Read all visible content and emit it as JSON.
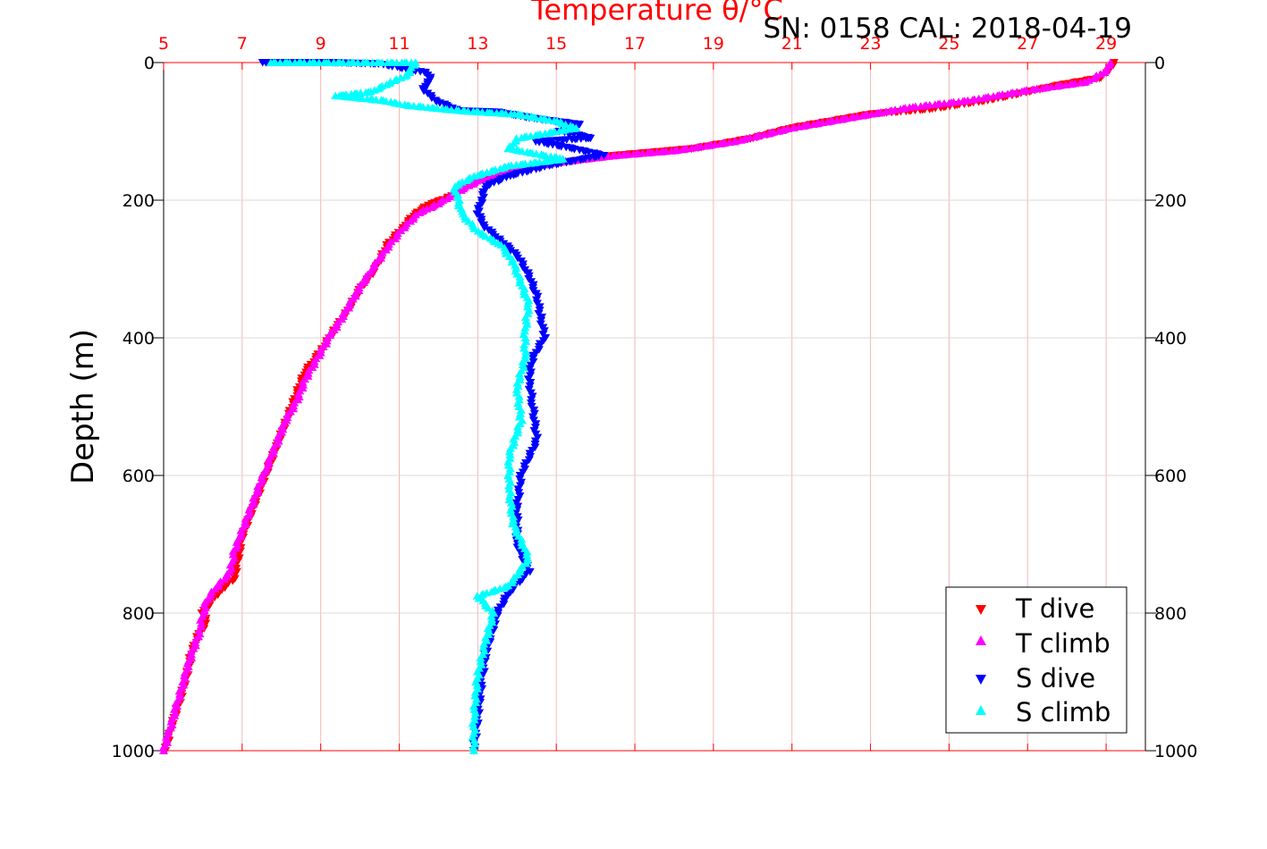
{
  "chart_data": {
    "type": "scatter",
    "title": "Temperature θ/°C",
    "subtitle": "SN: 0158  CAL: 2018-04-19",
    "ylabel": "Depth (m)",
    "xlim": [
      5,
      30
    ],
    "ylim": [
      0,
      1000
    ],
    "y_reversed": true,
    "x_ticks": [
      "5",
      "7",
      "9",
      "11",
      "13",
      "15",
      "17",
      "19",
      "21",
      "23",
      "25",
      "27",
      "29"
    ],
    "y_ticks": [
      "0",
      "200",
      "400",
      "600",
      "800",
      "1000"
    ],
    "grid": true,
    "legend_position": "bottom-right",
    "colors": {
      "title": "#ff0000",
      "x_axis": "#ff0000",
      "grid_x": "#f2b8b8",
      "grid_y": "#d9d9d9",
      "axis_frame": "#000000"
    },
    "series": [
      {
        "name": "T dive",
        "marker": "triangle-down",
        "color": "#ff0000",
        "points": [
          [
            29.2,
            0
          ],
          [
            29.1,
            8
          ],
          [
            28.9,
            22
          ],
          [
            27.8,
            33
          ],
          [
            26.0,
            55
          ],
          [
            24.5,
            68
          ],
          [
            23.0,
            75
          ],
          [
            22.0,
            85
          ],
          [
            21.0,
            95
          ],
          [
            20.0,
            110
          ],
          [
            18.5,
            125
          ],
          [
            16.5,
            135
          ],
          [
            15.2,
            145
          ],
          [
            14.0,
            155
          ],
          [
            13.1,
            170
          ],
          [
            12.6,
            185
          ],
          [
            12.2,
            198
          ],
          [
            11.8,
            205
          ],
          [
            11.4,
            220
          ],
          [
            11.1,
            240
          ],
          [
            10.7,
            265
          ],
          [
            10.4,
            300
          ],
          [
            10.0,
            330
          ],
          [
            9.7,
            360
          ],
          [
            9.4,
            385
          ],
          [
            9.0,
            420
          ],
          [
            8.8,
            435
          ],
          [
            8.6,
            450
          ],
          [
            8.4,
            480
          ],
          [
            8.2,
            510
          ],
          [
            8.0,
            540
          ],
          [
            7.8,
            570
          ],
          [
            7.6,
            600
          ],
          [
            7.4,
            630
          ],
          [
            7.2,
            660
          ],
          [
            7.0,
            690
          ],
          [
            6.9,
            720
          ],
          [
            6.8,
            750
          ],
          [
            6.4,
            770
          ],
          [
            6.2,
            785
          ],
          [
            6.0,
            800
          ],
          [
            6.1,
            815
          ],
          [
            5.9,
            830
          ],
          [
            5.7,
            860
          ],
          [
            5.6,
            890
          ],
          [
            5.4,
            930
          ],
          [
            5.2,
            965
          ],
          [
            5.05,
            1000
          ]
        ]
      },
      {
        "name": "T climb",
        "marker": "triangle-up",
        "color": "#ff00ff",
        "points": [
          [
            29.1,
            0
          ],
          [
            29.0,
            12
          ],
          [
            28.5,
            28
          ],
          [
            27.0,
            40
          ],
          [
            25.5,
            55
          ],
          [
            24.0,
            65
          ],
          [
            22.5,
            80
          ],
          [
            21.0,
            95
          ],
          [
            19.5,
            115
          ],
          [
            18.0,
            128
          ],
          [
            16.5,
            135
          ],
          [
            15.0,
            145
          ],
          [
            14.0,
            155
          ],
          [
            13.0,
            172
          ],
          [
            12.4,
            190
          ],
          [
            12.0,
            205
          ],
          [
            11.5,
            218
          ],
          [
            11.1,
            240
          ],
          [
            10.7,
            268
          ],
          [
            10.3,
            300
          ],
          [
            9.9,
            335
          ],
          [
            9.6,
            365
          ],
          [
            9.2,
            400
          ],
          [
            8.9,
            430
          ],
          [
            8.6,
            460
          ],
          [
            8.4,
            490
          ],
          [
            8.1,
            520
          ],
          [
            7.9,
            550
          ],
          [
            7.6,
            590
          ],
          [
            7.4,
            620
          ],
          [
            7.2,
            650
          ],
          [
            7.0,
            680
          ],
          [
            6.8,
            710
          ],
          [
            6.7,
            740
          ],
          [
            6.3,
            765
          ],
          [
            6.1,
            780
          ],
          [
            6.0,
            800
          ],
          [
            5.9,
            830
          ],
          [
            5.7,
            860
          ],
          [
            5.5,
            900
          ],
          [
            5.3,
            940
          ],
          [
            5.1,
            980
          ],
          [
            5.0,
            1000
          ]
        ]
      },
      {
        "name": "S dive",
        "marker": "triangle-down",
        "color": "#0000ff",
        "points": [
          [
            7.5,
            0
          ],
          [
            8.0,
            0
          ],
          [
            9.2,
            0
          ],
          [
            10.5,
            2
          ],
          [
            11.7,
            15
          ],
          [
            11.8,
            25
          ],
          [
            11.6,
            38
          ],
          [
            11.9,
            55
          ],
          [
            12.5,
            70
          ],
          [
            13.5,
            72
          ],
          [
            14.5,
            82
          ],
          [
            15.6,
            90
          ],
          [
            15.1,
            100
          ],
          [
            15.9,
            110
          ],
          [
            14.5,
            115
          ],
          [
            15.4,
            125
          ],
          [
            16.2,
            135
          ],
          [
            14.8,
            150
          ],
          [
            13.8,
            165
          ],
          [
            13.2,
            180
          ],
          [
            13.1,
            200
          ],
          [
            13.0,
            220
          ],
          [
            13.2,
            240
          ],
          [
            13.6,
            260
          ],
          [
            14.0,
            280
          ],
          [
            14.3,
            310
          ],
          [
            14.5,
            340
          ],
          [
            14.6,
            370
          ],
          [
            14.7,
            400
          ],
          [
            14.4,
            430
          ],
          [
            14.3,
            460
          ],
          [
            14.4,
            500
          ],
          [
            14.5,
            550
          ],
          [
            14.1,
            600
          ],
          [
            14.0,
            650
          ],
          [
            14.0,
            700
          ],
          [
            14.3,
            740
          ],
          [
            13.8,
            770
          ],
          [
            13.5,
            800
          ],
          [
            13.4,
            820
          ],
          [
            13.2,
            860
          ],
          [
            13.1,
            900
          ],
          [
            13.0,
            950
          ],
          [
            12.9,
            1000
          ]
        ]
      },
      {
        "name": "S climb",
        "marker": "triangle-up",
        "color": "#00ffff",
        "points": [
          [
            7.7,
            0
          ],
          [
            11.4,
            0
          ],
          [
            11.2,
            18
          ],
          [
            10.8,
            28
          ],
          [
            10.3,
            42
          ],
          [
            9.4,
            48
          ],
          [
            10.6,
            55
          ],
          [
            11.2,
            62
          ],
          [
            12.6,
            70
          ],
          [
            14.0,
            75
          ],
          [
            15.0,
            85
          ],
          [
            15.5,
            95
          ],
          [
            14.0,
            110
          ],
          [
            13.8,
            125
          ],
          [
            15.2,
            140
          ],
          [
            13.8,
            150
          ],
          [
            12.9,
            165
          ],
          [
            12.4,
            180
          ],
          [
            12.5,
            200
          ],
          [
            12.6,
            220
          ],
          [
            13.0,
            245
          ],
          [
            13.6,
            265
          ],
          [
            13.9,
            290
          ],
          [
            14.1,
            320
          ],
          [
            14.3,
            350
          ],
          [
            14.2,
            390
          ],
          [
            14.2,
            430
          ],
          [
            14.0,
            470
          ],
          [
            14.1,
            520
          ],
          [
            13.8,
            570
          ],
          [
            13.8,
            620
          ],
          [
            13.9,
            670
          ],
          [
            14.3,
            720
          ],
          [
            13.8,
            760
          ],
          [
            13.0,
            775
          ],
          [
            13.4,
            800
          ],
          [
            13.2,
            840
          ],
          [
            13.0,
            890
          ],
          [
            12.9,
            950
          ],
          [
            12.9,
            1000
          ]
        ]
      }
    ]
  }
}
